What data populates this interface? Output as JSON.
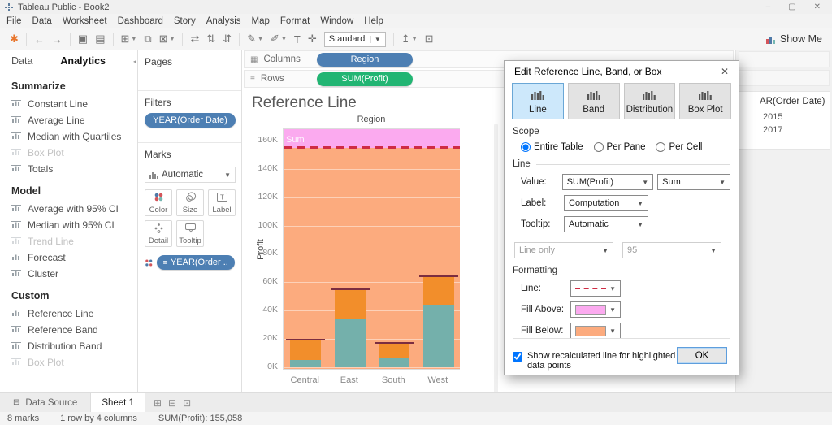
{
  "window": {
    "title": "Tableau Public - Book2",
    "controls": [
      {
        "name": "minimize-button",
        "glyph": "–"
      },
      {
        "name": "restore-button",
        "glyph": "▢"
      },
      {
        "name": "close-button",
        "glyph": "✕"
      }
    ]
  },
  "menu": [
    "File",
    "Data",
    "Worksheet",
    "Dashboard",
    "Story",
    "Analysis",
    "Map",
    "Format",
    "Window",
    "Help"
  ],
  "toolbar": {
    "fit_mode": "Standard",
    "show_me_label": "Show Me",
    "icons_left": [
      {
        "name": "tableau-logo-icon",
        "glyph": "✱",
        "color": "#e8762d"
      },
      {
        "sep": true
      },
      {
        "name": "undo-icon",
        "glyph": "←"
      },
      {
        "name": "redo-icon",
        "glyph": "→"
      },
      {
        "sep": true
      },
      {
        "name": "save-icon",
        "glyph": "▣"
      },
      {
        "name": "new-data-source-icon",
        "glyph": "▤"
      },
      {
        "sep": true
      },
      {
        "name": "new-worksheet-icon",
        "glyph": "⊞",
        "dropdown": true
      },
      {
        "name": "duplicate-sheet-icon",
        "glyph": "⧉"
      },
      {
        "name": "clear-sheet-icon",
        "glyph": "⊠",
        "dropdown": true
      },
      {
        "sep": true
      },
      {
        "name": "swap-rows-columns-icon",
        "glyph": "⇄"
      },
      {
        "name": "sort-ascending-icon",
        "glyph": "⇅"
      },
      {
        "name": "sort-descending-icon",
        "glyph": "⇵"
      },
      {
        "sep": true
      },
      {
        "name": "highlight-icon",
        "glyph": "✎",
        "dropdown": true
      },
      {
        "name": "format-icon",
        "glyph": "✐",
        "dropdown": true
      },
      {
        "name": "text-label-icon",
        "glyph": "T"
      },
      {
        "name": "fix-axes-icon",
        "glyph": "✛"
      }
    ],
    "icons_right": [
      {
        "name": "share-icon",
        "glyph": "↥",
        "dropdown": true
      },
      {
        "name": "presentation-mode-icon",
        "glyph": "⊡"
      }
    ]
  },
  "sidebar": {
    "tabs": [
      {
        "label": "Data",
        "active": false
      },
      {
        "label": "Analytics",
        "active": true
      }
    ],
    "sections": [
      {
        "title": "Summarize",
        "items": [
          {
            "label": "Constant Line"
          },
          {
            "label": "Average Line"
          },
          {
            "label": "Median with Quartiles"
          },
          {
            "label": "Box Plot",
            "disabled": true
          },
          {
            "label": "Totals"
          }
        ]
      },
      {
        "title": "Model",
        "items": [
          {
            "label": "Average with 95% CI"
          },
          {
            "label": "Median with 95% CI"
          },
          {
            "label": "Trend Line",
            "disabled": true
          },
          {
            "label": "Forecast"
          },
          {
            "label": "Cluster"
          }
        ]
      },
      {
        "title": "Custom",
        "items": [
          {
            "label": "Reference Line"
          },
          {
            "label": "Reference Band"
          },
          {
            "label": "Distribution Band"
          },
          {
            "label": "Box Plot",
            "disabled": true
          }
        ]
      }
    ]
  },
  "shelves": {
    "pages_label": "Pages",
    "filters_label": "Filters",
    "filter_pill": "YEAR(Order Date)",
    "marks_label": "Marks",
    "mark_type": "Automatic",
    "mark_buttons": [
      "Color",
      "Size",
      "Label",
      "Detail",
      "Tooltip"
    ],
    "marks_pill": "YEAR(Order ..",
    "columns_label": "Columns",
    "columns_pill": "Region",
    "rows_label": "Rows",
    "rows_pill": "SUM(Profit)"
  },
  "chart_data": {
    "type": "bar",
    "stacked": true,
    "title": "Reference Line",
    "column_header": "Region",
    "ylabel": "Profit",
    "categories": [
      "Central",
      "East",
      "South",
      "West"
    ],
    "series": [
      {
        "name": "2015",
        "color": "#74b0ab",
        "values": [
          5000,
          34000,
          7000,
          44000
        ]
      },
      {
        "name": "2017",
        "color": "#f28e2b",
        "values": [
          14500,
          21000,
          10000,
          20500
        ]
      }
    ],
    "totals": [
      19500,
      55000,
      17000,
      64500
    ],
    "y_ticks": [
      0,
      20000,
      40000,
      60000,
      80000,
      100000,
      120000,
      140000,
      160000
    ],
    "ylim": [
      0,
      168000
    ],
    "grid": true,
    "reference_line": {
      "value": 155058,
      "label": "Sum",
      "style": "dashed",
      "color": "#cf2b44",
      "fill_above": "#fbaaef",
      "fill_below": "#fcab7e"
    },
    "cap_color": "#7b2d40"
  },
  "legend": {
    "title": "AR(Order Date)",
    "items": [
      "2015",
      "2017"
    ]
  },
  "dialog": {
    "title": "Edit Reference Line, Band, or Box",
    "tabs": [
      {
        "label": "Line",
        "active": true
      },
      {
        "label": "Band",
        "active": false
      },
      {
        "label": "Distribution",
        "active": false
      },
      {
        "label": "Box Plot",
        "active": false
      }
    ],
    "scope": {
      "legend": "Scope",
      "options": [
        {
          "label": "Entire Table",
          "selected": true
        },
        {
          "label": "Per Pane",
          "selected": false
        },
        {
          "label": "Per Cell",
          "selected": false
        }
      ]
    },
    "line": {
      "legend": "Line",
      "value_label": "Value:",
      "value_field": "SUM(Profit)",
      "value_agg": "Sum",
      "label_label": "Label:",
      "label_value": "Computation",
      "tooltip_label": "Tooltip:",
      "tooltip_value": "Automatic",
      "ci_line": "Line only",
      "ci_value": "95"
    },
    "formatting": {
      "legend": "Formatting",
      "line_label": "Line:",
      "fill_above_label": "Fill Above:",
      "fill_below_label": "Fill Below:"
    },
    "checkbox_label": "Show recalculated line for highlighted or selected data points",
    "ok_label": "OK"
  },
  "footer": {
    "data_source_tab": "Data Source",
    "data_source_icon_glyph": "⊟",
    "sheet_tab": "Sheet 1",
    "new_tab_icons": [
      {
        "name": "new-worksheet-button",
        "glyph": "⊞"
      },
      {
        "name": "new-dashboard-button",
        "glyph": "⊟"
      },
      {
        "name": "new-story-button",
        "glyph": "⊡"
      }
    ],
    "status": {
      "marks": "8 marks",
      "size": "1 row by 4 columns",
      "agg": "SUM(Profit): 155,058"
    }
  },
  "colors": {
    "dimension_pill": "#4d7fb3",
    "measure_pill": "#22b573",
    "dialog_selected_tab": "#cde8fb",
    "accent_blue": "#5e9edd"
  }
}
